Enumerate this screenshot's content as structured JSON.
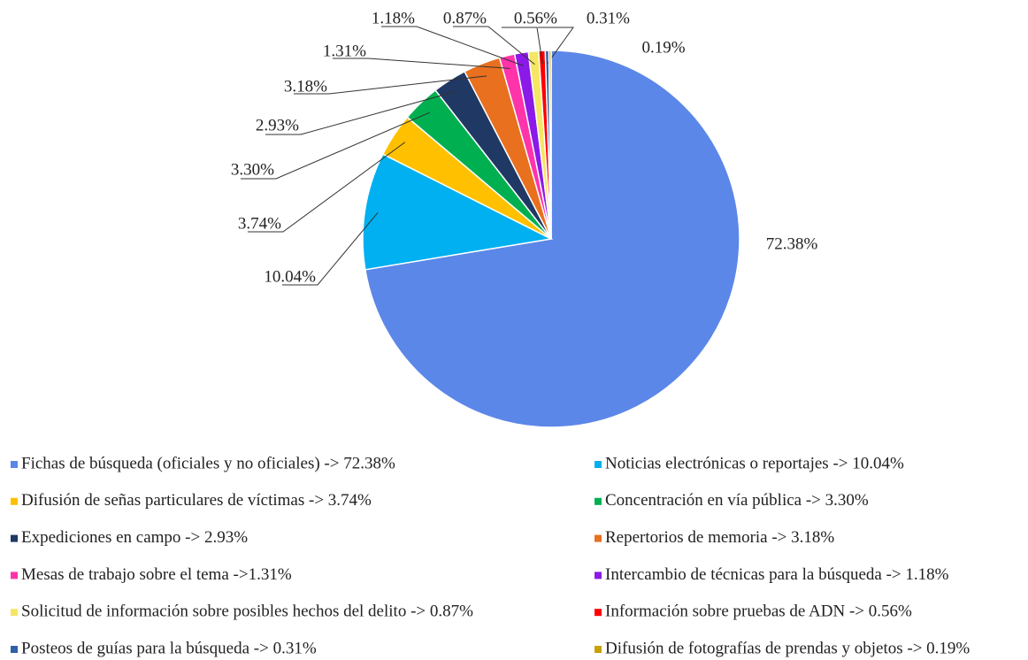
{
  "chart_data": {
    "type": "pie",
    "categories": [
      "Fichas de búsqueda (oficiales y no oficiales) -> 72.38%",
      "Noticias electrónicas o reportajes  -> 10.04%",
      "Difusión de señas particulares de víctimas -> 3.74%",
      "Concentración en vía pública  -> 3.30%",
      "Expediciones en campo -> 2.93%",
      "Repertorios de memoria -> 3.18%",
      "Mesas de trabajo sobre el tema ->1.31%",
      "Intercambio de técnicas para la búsqueda -> 1.18%",
      "Solicitud de información sobre posibles hechos del delito -> 0.87%",
      "Información sobre pruebas de ADN -> 0.56%",
      "Posteos de guías para la búsqueda -> 0.31%",
      "Difusión de fotografías de prendas y objetos -> 0.19%"
    ],
    "values": [
      72.38,
      10.04,
      3.74,
      3.3,
      2.93,
      3.18,
      1.31,
      1.18,
      0.87,
      0.56,
      0.31,
      0.19
    ],
    "value_labels": [
      "72.38%",
      "10.04%",
      "3.74%",
      "3.30%",
      "2.93%",
      "3.18%",
      "1.31%",
      "1.18%",
      "0.87%",
      "0.56%",
      "0.31%",
      "0.19%"
    ],
    "colors": [
      "#5b87e8",
      "#00b0f0",
      "#ffc000",
      "#00b050",
      "#1f3864",
      "#e8701f",
      "#ff33aa",
      "#8b1ae8",
      "#f5e663",
      "#ff0000",
      "#2e5fa8",
      "#c8a000"
    ],
    "legend": "bottom"
  }
}
